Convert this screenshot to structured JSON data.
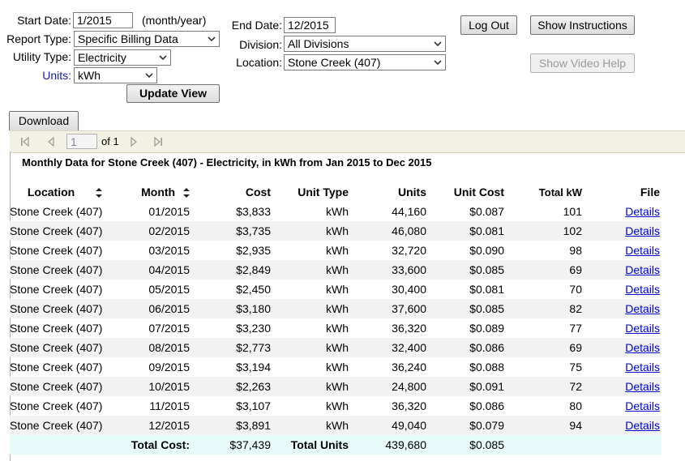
{
  "form": {
    "start_date_label": "Start Date:",
    "start_date_value": "1/2015",
    "start_date_hint": "(month/year)",
    "end_date_label": "End Date:",
    "end_date_value": "12/2015",
    "report_type_label": "Report Type:",
    "report_type_value": "Specific Billing Data",
    "utility_type_label": "Utility Type:",
    "utility_type_value": "Electricity",
    "units_label": "Units:",
    "units_value": "kWh",
    "division_label": "Division:",
    "division_value": "All Divisions",
    "location_label": "Location:",
    "location_value": "Stone Creek (407)",
    "update_view_label": "Update View"
  },
  "buttons": {
    "log_out": "Log Out",
    "show_instructions": "Show Instructions",
    "show_video_help": "Show Video Help",
    "download": "Download"
  },
  "pager": {
    "page_value": "1",
    "of_label": "of 1"
  },
  "report": {
    "title": "Monthly Data for Stone Creek (407) - Electricity, in kWh from Jan 2015 to Dec 2015",
    "columns": [
      "Location",
      "Month",
      "Cost",
      "Unit Type",
      "Units",
      "Unit Cost",
      "Total kW",
      "File"
    ],
    "rows": [
      [
        "Stone Creek (407)",
        "01/2015",
        "$3,833",
        "kWh",
        "44,160",
        "$0.087",
        "101",
        "Details"
      ],
      [
        "Stone Creek (407)",
        "02/2015",
        "$3,735",
        "kWh",
        "46,080",
        "$0.081",
        "102",
        "Details"
      ],
      [
        "Stone Creek (407)",
        "03/2015",
        "$2,935",
        "kWh",
        "32,720",
        "$0.090",
        "98",
        "Details"
      ],
      [
        "Stone Creek (407)",
        "04/2015",
        "$2,849",
        "kWh",
        "33,600",
        "$0.085",
        "69",
        "Details"
      ],
      [
        "Stone Creek (407)",
        "05/2015",
        "$2,450",
        "kWh",
        "30,400",
        "$0.081",
        "70",
        "Details"
      ],
      [
        "Stone Creek (407)",
        "06/2015",
        "$3,180",
        "kWh",
        "37,600",
        "$0.085",
        "82",
        "Details"
      ],
      [
        "Stone Creek (407)",
        "07/2015",
        "$3,230",
        "kWh",
        "36,320",
        "$0.089",
        "77",
        "Details"
      ],
      [
        "Stone Creek (407)",
        "08/2015",
        "$2,773",
        "kWh",
        "32,400",
        "$0.086",
        "69",
        "Details"
      ],
      [
        "Stone Creek (407)",
        "09/2015",
        "$3,194",
        "kWh",
        "36,240",
        "$0.088",
        "75",
        "Details"
      ],
      [
        "Stone Creek (407)",
        "10/2015",
        "$2,263",
        "kWh",
        "24,800",
        "$0.091",
        "72",
        "Details"
      ],
      [
        "Stone Creek (407)",
        "11/2015",
        "$3,107",
        "kWh",
        "36,320",
        "$0.086",
        "80",
        "Details"
      ],
      [
        "Stone Creek (407)",
        "12/2015",
        "$3,891",
        "kWh",
        "49,040",
        "$0.079",
        "94",
        "Details"
      ]
    ],
    "totals": {
      "total_cost_label": "Total Cost:",
      "total_cost_value": "$37,439",
      "total_units_label": "Total Units",
      "total_units_value": "439,680",
      "avg_unit_cost": "$0.085"
    }
  },
  "colors": {
    "label_blue": "#1a1aa6",
    "toolbar_bg": "#f2f1e4",
    "total_row_bg": "#e8fbfb",
    "link": "#0000cc"
  },
  "icons": [
    "chevron-down-icon",
    "first-page-icon",
    "prev-page-icon",
    "next-page-icon",
    "last-page-icon",
    "sort-icon"
  ]
}
